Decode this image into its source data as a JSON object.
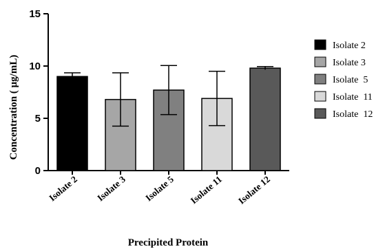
{
  "chart_data": {
    "type": "bar",
    "title": "",
    "xlabel": "Precipited Protein",
    "ylabel": "Concentration ( μg/mL)",
    "ylim": [
      0,
      15
    ],
    "yticks": [
      "0",
      "5",
      "10",
      "15"
    ],
    "ytick_values": [
      0,
      5,
      10,
      15
    ],
    "categories": [
      "Isolate 2",
      "Isolate 3",
      "Isolate  5",
      "Isolate  11",
      "Isolate  12"
    ],
    "values": [
      9.0,
      6.8,
      7.7,
      6.9,
      9.8
    ],
    "errors": [
      0.35,
      2.55,
      2.35,
      2.6,
      0.15
    ],
    "colors": [
      "#000000",
      "#a6a6a6",
      "#808080",
      "#d9d9d9",
      "#595959"
    ],
    "legend": {
      "position": "right",
      "entries": [
        "Isolate 2",
        "Isolate 3",
        "Isolate  5",
        "Isolate  11",
        "Isolate  12"
      ]
    },
    "grid": false
  }
}
